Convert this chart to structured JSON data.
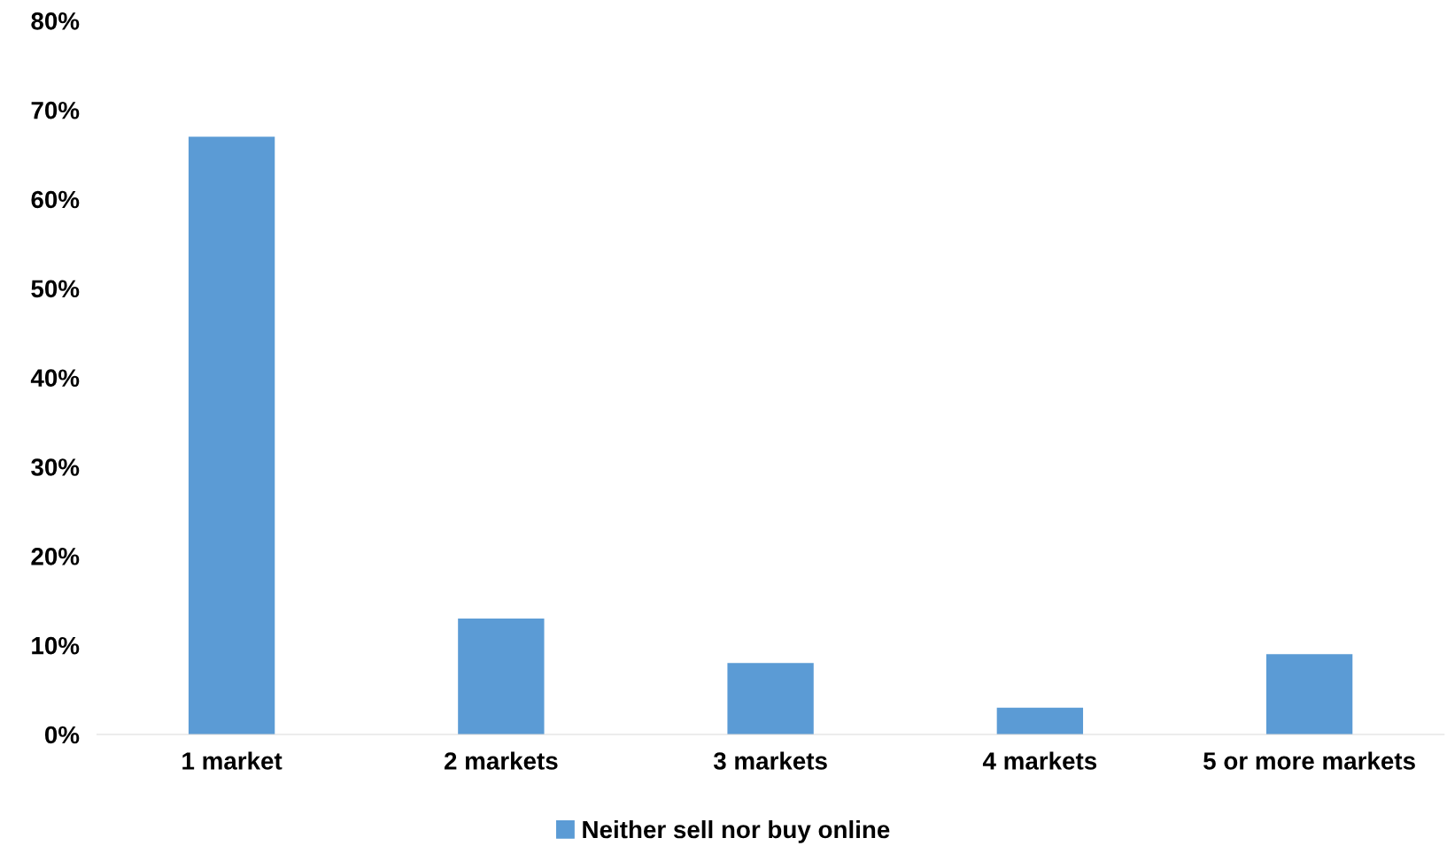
{
  "chart_data": {
    "type": "bar",
    "categories": [
      "1 market",
      "2 markets",
      "3 markets",
      "4 markets",
      "5 or more markets"
    ],
    "series": [
      {
        "name": "Neither sell nor buy online",
        "color": "#5b9bd5",
        "values": [
          67,
          13,
          8,
          3,
          9
        ]
      }
    ],
    "ylim": [
      0,
      80
    ],
    "yticks": [
      {
        "value": 0,
        "label": "0%"
      },
      {
        "value": 10,
        "label": "10%"
      },
      {
        "value": 20,
        "label": "20%"
      },
      {
        "value": 30,
        "label": "30%"
      },
      {
        "value": 40,
        "label": "40%"
      },
      {
        "value": 50,
        "label": "50%"
      },
      {
        "value": 60,
        "label": "60%"
      },
      {
        "value": 70,
        "label": "70%"
      },
      {
        "value": 80,
        "label": "80%"
      }
    ],
    "grid": false,
    "legend": "bottom"
  }
}
